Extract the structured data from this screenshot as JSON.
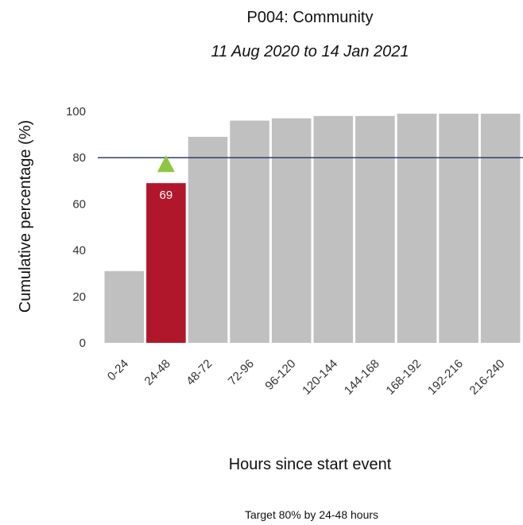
{
  "chart_data": {
    "type": "bar",
    "title": "P004: Community",
    "subtitle": "11 Aug 2020 to 14 Jan 2021",
    "xlabel": "Hours since start event",
    "ylabel": "Cumulative percentage (%)",
    "caption": "Target 80% by 24-48 hours",
    "categories": [
      "0-24",
      "24-48",
      "48-72",
      "72-96",
      "96-120",
      "120-144",
      "144-168",
      "168-192",
      "192-216",
      "216-240"
    ],
    "values": [
      31,
      69,
      89,
      96,
      97,
      98,
      98,
      99,
      99,
      99
    ],
    "highlight_index": 1,
    "highlight_label": "69",
    "target_value": 80,
    "ylim": [
      0,
      100
    ],
    "yticks": [
      0,
      20,
      40,
      60,
      80,
      100
    ],
    "grid": false,
    "colors": {
      "bar": "#c0c0c0",
      "highlight": "#b0172a",
      "target_line": "#2e3f6e",
      "marker": "#8fc641"
    }
  }
}
